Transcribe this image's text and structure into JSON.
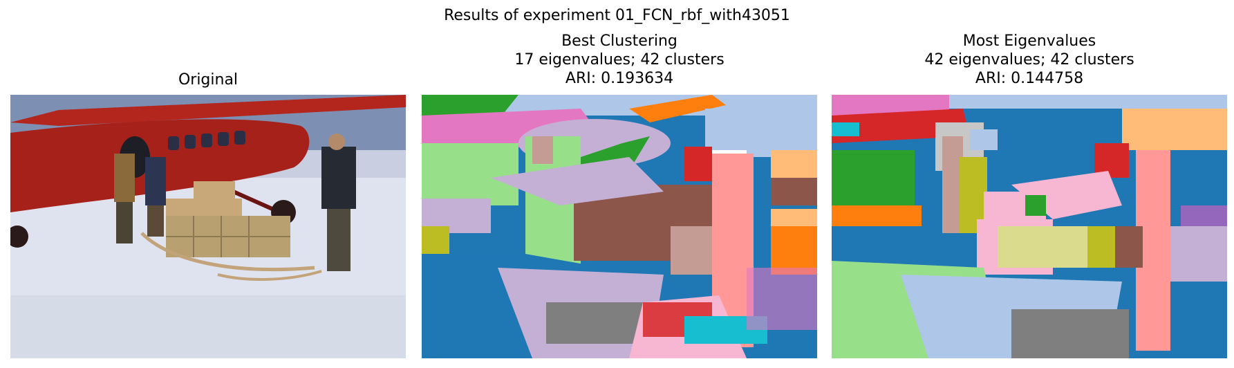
{
  "figure": {
    "suptitle": "Results of experiment 01_FCN_rbf_with43051"
  },
  "panels": [
    {
      "title_lines": [
        "Original"
      ]
    },
    {
      "title_lines": [
        "Best Clustering",
        "17 eigenvalues; 42 clusters",
        "ARI: 0.193634"
      ]
    },
    {
      "title_lines": [
        "Most Eigenvalues",
        "42 eigenvalues; 42 clusters",
        "ARI: 0.144758"
      ]
    }
  ],
  "palette": {
    "snow": "#dfe3ef",
    "sky": "#7d8fb3",
    "plane_red": "#b3261e",
    "crate": "#c8a878",
    "tab_blue": "#1f77b4",
    "tab_lightblue": "#aec7e8",
    "tab_orange": "#ff7f0e",
    "tab_peach": "#ffbb78",
    "tab_green": "#2ca02c",
    "tab_lightgreen": "#98df8a",
    "tab_red": "#d62728",
    "tab_salmon": "#ff9896",
    "tab_purple": "#9467bd",
    "tab_lavender": "#c5b0d5",
    "tab_brown": "#8c564b",
    "tab_tan": "#c49c94",
    "tab_pink": "#e377c2",
    "tab_lightpink": "#f7b6d2",
    "tab_gray": "#7f7f7f",
    "tab_olive": "#bcbd22",
    "tab_khaki": "#dbdb8d",
    "tab_cyan": "#17becf",
    "tab_lightcyan": "#9edae5"
  }
}
